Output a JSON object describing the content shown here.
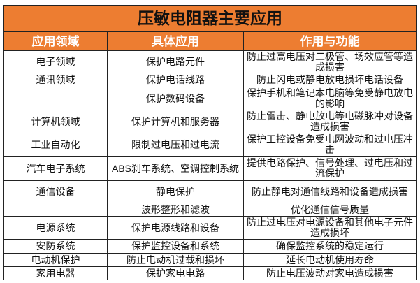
{
  "title": "压敏电阻器主要应用",
  "headers": [
    "应用领域",
    "具体应用",
    "作用与功能"
  ],
  "rows": [
    [
      "电子领域",
      "保护电路元件",
      "防止过高电压对二极管、场效应管等造成损害"
    ],
    [
      "通讯领域",
      "保护电话线路",
      "防止闪电或静电放电损坏电话设备"
    ],
    [
      "",
      "保护数码设备",
      "保护手机和笔记本电脑等免受静电放电的影响"
    ],
    [
      "计算机领域",
      "保护计算机和服务器",
      "防止雷击、静电放电等电磁脉冲对设备造成损害"
    ],
    [
      "工业自动化",
      "限制过电压和过电流",
      "保护工控设备免受电网波动和过电压冲击"
    ],
    [
      "汽车电子系统",
      "ABS刹车系统、空调控制系统",
      "提供电路保护、信号处理、过电压和过流保护"
    ],
    [
      "通信设备",
      "静电保护",
      "防止静电对通信线路和设备造成损害"
    ],
    [
      "",
      "波形整形和滤波",
      "优化通信信号质量"
    ],
    [
      "电源系统",
      "保护电源线路和设备",
      "防止过电压对电源设备和其他电子元件造成损坏"
    ],
    [
      "安防系统",
      "保护监控设备和系统",
      "确保监控系统的稳定运行"
    ],
    [
      "电动机保护",
      "防止电动机过载和损坏",
      "延长电动机使用寿命"
    ],
    [
      "家用电器",
      "保护家电电路",
      "防止电压波动对家电造成损害"
    ]
  ],
  "colors": {
    "header_bg": "#ED7D31",
    "header_text": "#FFFFFF"
  }
}
